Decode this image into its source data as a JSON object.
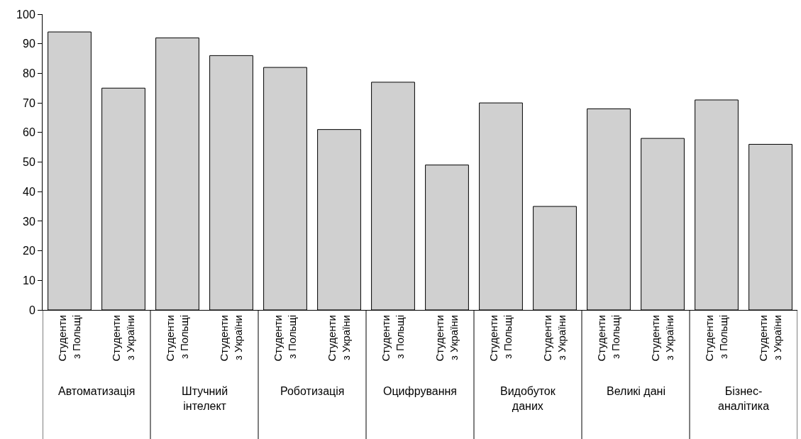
{
  "chart_data": {
    "type": "bar",
    "categories": [
      "Студенти\nз Польщі",
      "Студенти\nз України",
      "Студенти\nз Польщі",
      "Студенти\nз України",
      "Студенти\nз Польщі",
      "Студенти\nз України",
      "Студенти\nз Польщі",
      "Студенти\nз України",
      "Студенти\nз Польщі",
      "Студенти\nз України",
      "Студенти\nз Польщі",
      "Студенти\nз України",
      "Студенти\nз Польщі",
      "Студенти\nз України"
    ],
    "values": [
      94,
      75,
      92,
      86,
      82,
      61,
      77,
      49,
      70,
      35,
      68,
      58,
      71,
      56
    ],
    "color": "#d0d0d0",
    "annotations": [
      "Автоматизація",
      "Штучний\nінтелект",
      "Роботизація",
      "Оцифрування",
      "Видобуток\nданих",
      "Великі дані",
      "Бізнес-\nаналітика"
    ],
    "ylim": [
      0,
      100
    ],
    "yticks": [
      0,
      10,
      20,
      30,
      40,
      50,
      60,
      70,
      80,
      90,
      100
    ]
  }
}
